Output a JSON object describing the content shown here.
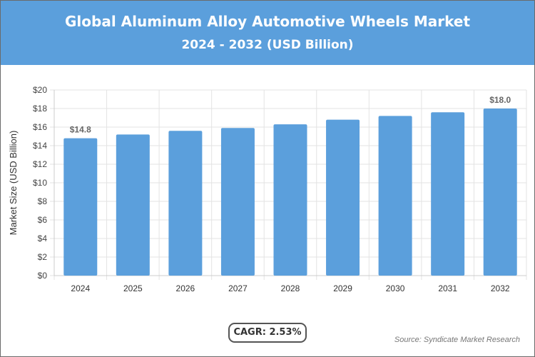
{
  "title": "Global Aluminum Alloy Automotive Wheels Market",
  "subtitle": "2024 - 2032 (USD Billion)",
  "cagr_label": "CAGR: 2.53%",
  "source": "Source: Syndicate Market Research",
  "colors": {
    "header": "#5b9fdc",
    "bar": "#5b9fdc"
  },
  "chart_data": {
    "type": "bar",
    "categories": [
      "2024",
      "2025",
      "2026",
      "2027",
      "2028",
      "2029",
      "2030",
      "2031",
      "2032"
    ],
    "values": [
      14.8,
      15.2,
      15.6,
      15.9,
      16.3,
      16.8,
      17.2,
      17.6,
      18.0
    ],
    "data_labels": {
      "0": "$14.8",
      "8": "$18.0"
    },
    "ylabel": "Market Size (USD Billion)",
    "xlabel": "",
    "ylim": [
      0,
      20
    ],
    "yticks": [
      "$0",
      "$2",
      "$4",
      "$6",
      "$8",
      "$10",
      "$12",
      "$14",
      "$16",
      "$18",
      "$20"
    ],
    "grid": true
  }
}
